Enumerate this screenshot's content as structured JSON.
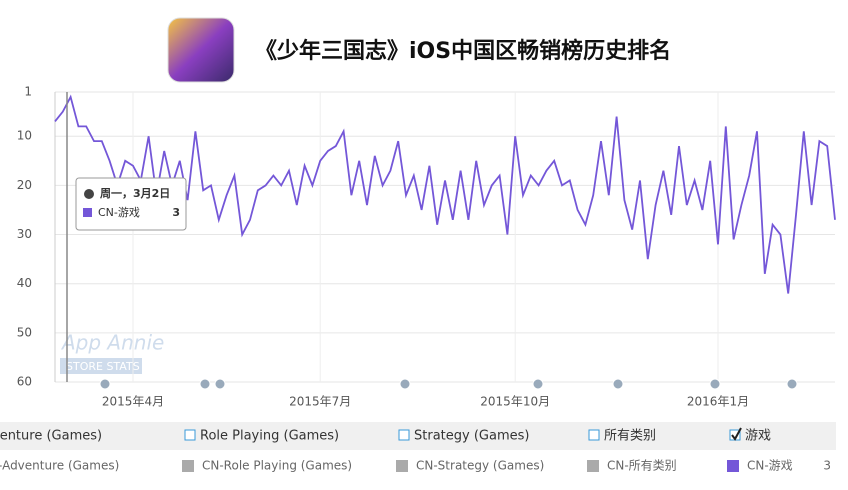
{
  "header": {
    "title": "《少年三国志》iOS中国区畅销榜历史排名"
  },
  "chart_data": {
    "type": "line",
    "categories": [
      null,
      null,
      null,
      null,
      null,
      null,
      null,
      null,
      null,
      null,
      "2015年4月",
      null,
      null,
      null,
      null,
      null,
      null,
      null,
      null,
      null,
      null,
      null,
      null,
      null,
      null,
      null,
      null,
      null,
      null,
      null,
      null,
      null,
      null,
      null,
      "2015年7月",
      null,
      null,
      null,
      null,
      null,
      null,
      null,
      null,
      null,
      null,
      null,
      null,
      null,
      null,
      null,
      null,
      null,
      null,
      null,
      null,
      null,
      null,
      null,
      null,
      "2015年10月",
      null,
      null,
      null,
      null,
      null,
      null,
      null,
      null,
      null,
      null,
      null,
      null,
      null,
      null,
      null,
      null,
      null,
      null,
      null,
      null,
      null,
      null,
      null,
      null,
      null,
      "2016年1月",
      null,
      null,
      null,
      null,
      null,
      null,
      null,
      null,
      null,
      null,
      null,
      null,
      null,
      null,
      null
    ],
    "series": [
      {
        "name": "CN-游戏",
        "color": "#7457d8",
        "values": [
          7,
          5,
          2,
          8,
          8,
          11,
          11,
          15,
          20,
          15,
          16,
          19,
          10,
          22,
          13,
          20,
          15,
          23,
          9,
          21,
          20,
          27,
          22,
          18,
          30,
          27,
          21,
          20,
          18,
          20,
          17,
          24,
          16,
          20,
          15,
          13,
          12,
          9,
          22,
          15,
          24,
          14,
          20,
          17,
          11,
          22,
          18,
          25,
          16,
          28,
          19,
          27,
          17,
          27,
          15,
          24,
          20,
          18,
          30,
          10,
          22,
          18,
          20,
          17,
          15,
          20,
          19,
          25,
          28,
          22,
          11,
          22,
          6,
          23,
          29,
          19,
          35,
          24,
          17,
          26,
          12,
          24,
          19,
          25,
          15,
          32,
          8,
          31,
          24,
          18,
          9,
          38,
          28,
          30,
          42,
          26,
          9,
          24,
          11,
          12,
          27
        ]
      }
    ],
    "ylim": [
      1,
      60
    ],
    "yticks": [
      1,
      10,
      20,
      30,
      40,
      50,
      60
    ],
    "y_inverted": true,
    "grid": true
  },
  "tooltip": {
    "date": "周一，3月2日",
    "value": "3"
  },
  "watermark": {
    "name": "App Annie",
    "sub": "STORE STATS"
  },
  "legend_filters": [
    {
      "label": "venture (Games)",
      "checked": false
    },
    {
      "label": "Role Playing (Games)",
      "checked": false
    },
    {
      "label": "Strategy (Games)",
      "checked": false
    },
    {
      "label": "所有类别",
      "checked": false
    },
    {
      "label": "游戏",
      "checked": true
    }
  ],
  "legend_series": [
    {
      "label": "-Adventure (Games)",
      "color": "#aaaaaa"
    },
    {
      "label": "CN-Role Playing (Games)",
      "color": "#aaaaaa"
    },
    {
      "label": "CN-Strategy (Games)",
      "color": "#aaaaaa"
    },
    {
      "label": "CN-所有类别",
      "color": "#aaaaaa"
    },
    {
      "label": "CN-游戏",
      "color": "#7457d8"
    }
  ]
}
